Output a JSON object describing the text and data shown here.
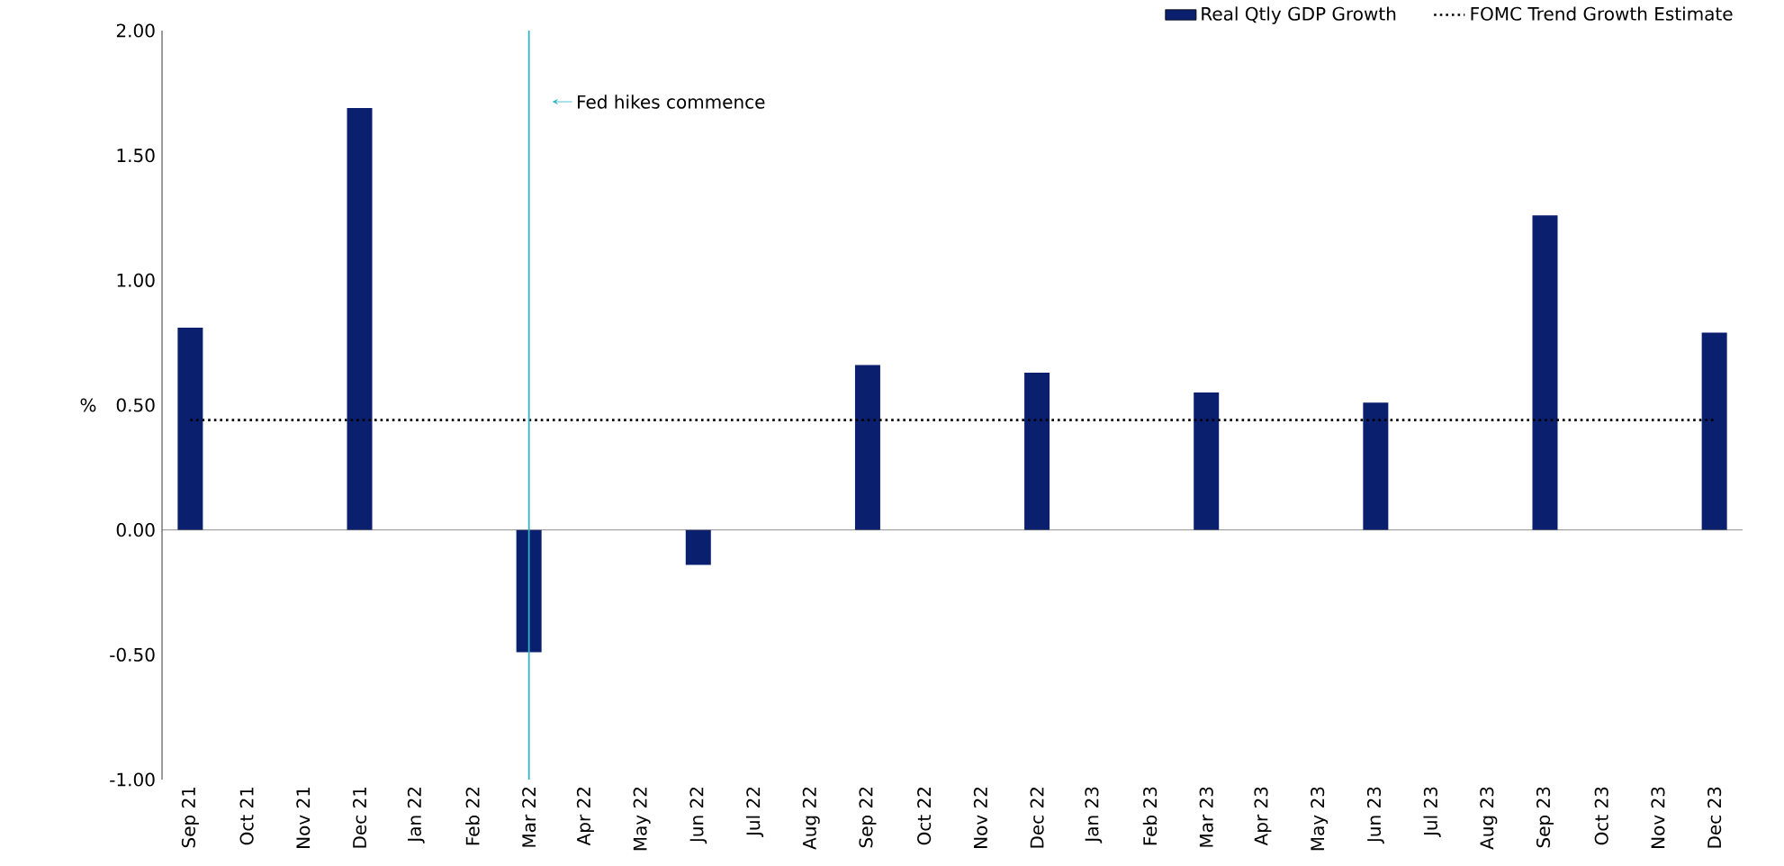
{
  "chart_data": {
    "type": "bar",
    "ylabel": "%",
    "categories": [
      "Sep 21",
      "Oct 21",
      "Nov 21",
      "Dec 21",
      "Jan 22",
      "Feb 22",
      "Mar 22",
      "Apr 22",
      "May 22",
      "Jun 22",
      "Jul 22",
      "Aug 22",
      "Sep 22",
      "Oct 22",
      "Nov 22",
      "Dec 22",
      "Jan 23",
      "Feb 23",
      "Mar 23",
      "Apr 23",
      "May 23",
      "Jun 23",
      "Jul 23",
      "Aug 23",
      "Sep 23",
      "Oct 23",
      "Nov 23",
      "Dec 23"
    ],
    "series": [
      {
        "name": "Real Qtly GDP Growth",
        "color": "#0a1f6e",
        "values": [
          0.81,
          null,
          null,
          1.69,
          null,
          null,
          -0.49,
          null,
          null,
          -0.14,
          null,
          null,
          0.66,
          null,
          null,
          0.63,
          null,
          null,
          0.55,
          null,
          null,
          0.51,
          null,
          null,
          1.26,
          null,
          null,
          0.79
        ]
      },
      {
        "name": "FOMC Trend Growth Estimate",
        "type": "line",
        "color": "#000000",
        "line_style": "dotted",
        "marker": "none",
        "values": [
          0.44,
          0.44,
          0.44,
          0.44,
          0.44,
          0.44,
          0.44,
          0.44,
          0.44,
          0.44,
          0.44,
          0.44,
          0.44,
          0.44,
          0.44,
          0.44,
          0.44,
          0.44,
          0.44,
          0.44,
          0.44,
          0.44,
          0.44,
          0.44,
          0.44,
          0.44,
          0.44,
          0.44
        ]
      }
    ],
    "ylim": [
      -1,
      2
    ],
    "yticks": [
      {
        "value": -1,
        "label": "-1.00"
      },
      {
        "value": -0.5,
        "label": "-0.50"
      },
      {
        "value": 0,
        "label": "0.00"
      },
      {
        "value": 0.5,
        "label": "0.50"
      },
      {
        "value": 1,
        "label": "1.00"
      },
      {
        "value": 1.5,
        "label": "1.50"
      },
      {
        "value": 2,
        "label": "2.00"
      }
    ],
    "ref_lines": [
      {
        "axis": "x",
        "value": "Mar 22",
        "label": "Fed hikes commence",
        "color": "#2ab5c8"
      }
    ],
    "grid": false,
    "legend": "top right"
  }
}
